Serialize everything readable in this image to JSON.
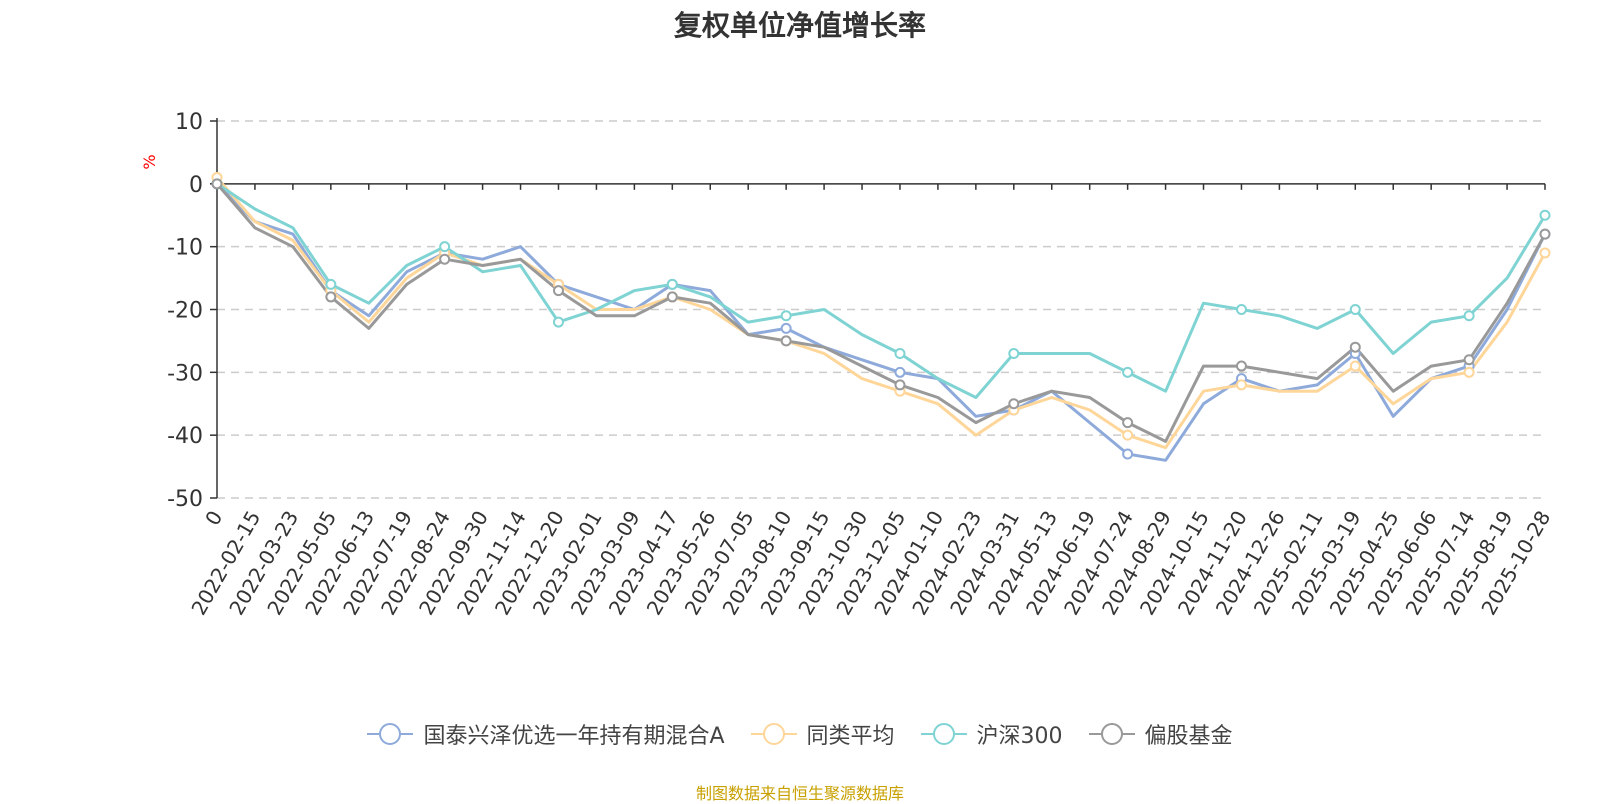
{
  "chart_data": {
    "type": "line",
    "title": "复权单位净值增长率",
    "ylabel": "%",
    "xlabel": "",
    "ylim": [
      -50,
      10
    ],
    "yticks": [
      10,
      0,
      -10,
      -20,
      -30,
      -40,
      -50
    ],
    "grid": true,
    "legend_position": "bottom-center",
    "x_tick_labels": [
      "0",
      "2022-02-15",
      "2022-03-23",
      "2022-05-05",
      "2022-06-13",
      "2022-07-19",
      "2022-08-24",
      "2022-09-30",
      "2022-11-14",
      "2022-12-20",
      "2023-02-01",
      "2023-03-09",
      "2023-04-17",
      "2023-05-26",
      "2023-07-05",
      "2023-08-10",
      "2023-09-15",
      "2023-10-30",
      "2023-12-05",
      "2024-01-10",
      "2024-02-23",
      "2024-03-31",
      "2024-05-13",
      "2024-06-19",
      "2024-07-24",
      "2024-08-29",
      "2024-10-15",
      "2024-11-20",
      "2024-12-26",
      "2025-02-11",
      "2025-03-19",
      "2025-04-25",
      "2025-06-06",
      "2025-07-14",
      "2025-08-19",
      "2025-10-28"
    ],
    "series": [
      {
        "name": "国泰兴泽优选一年持有期混合A",
        "color": "#8eaadb",
        "values": [
          0,
          -6,
          -8,
          -17,
          -21,
          -14,
          -11,
          -12,
          -10,
          -16,
          -18,
          -20,
          -16,
          -17,
          -24,
          -23,
          -26,
          -28,
          -30,
          -31,
          -37,
          -36,
          -33,
          -38,
          -43,
          -44,
          -35,
          -31,
          -33,
          -32,
          -27,
          -37,
          -31,
          -29,
          -20,
          -8
        ]
      },
      {
        "name": "同类平均",
        "color": "#ffd699",
        "values": [
          1,
          -6,
          -9,
          -17,
          -22,
          -15,
          -11,
          -13,
          -12,
          -16,
          -20,
          -20,
          -18,
          -20,
          -24,
          -25,
          -27,
          -31,
          -33,
          -35,
          -40,
          -36,
          -34,
          -36,
          -40,
          -42,
          -33,
          -32,
          -33,
          -33,
          -29,
          -35,
          -31,
          -30,
          -22,
          -11
        ]
      },
      {
        "name": "沪深300",
        "color": "#7fd3d3",
        "values": [
          0,
          -4,
          -7,
          -16,
          -19,
          -13,
          -10,
          -14,
          -13,
          -22,
          -20,
          -17,
          -16,
          -18,
          -22,
          -21,
          -20,
          -24,
          -27,
          -31,
          -34,
          -27,
          -27,
          -27,
          -30,
          -33,
          -19,
          -20,
          -21,
          -23,
          -20,
          -27,
          -22,
          -21,
          -15,
          -5
        ]
      },
      {
        "name": "偏股基金",
        "color": "#999999",
        "values": [
          0,
          -7,
          -10,
          -18,
          -23,
          -16,
          -12,
          -13,
          -12,
          -17,
          -21,
          -21,
          -18,
          -19,
          -24,
          -25,
          -26,
          -29,
          -32,
          -34,
          -38,
          -35,
          -33,
          -34,
          -38,
          -41,
          -29,
          -29,
          -30,
          -31,
          -26,
          -33,
          -29,
          -28,
          -19,
          -8
        ]
      }
    ]
  },
  "legend_labels": [
    "国泰兴泽优选一年持有期混合A",
    "同类平均",
    "沪深300",
    "偏股基金"
  ],
  "source": "制图数据来自恒生聚源数据库"
}
